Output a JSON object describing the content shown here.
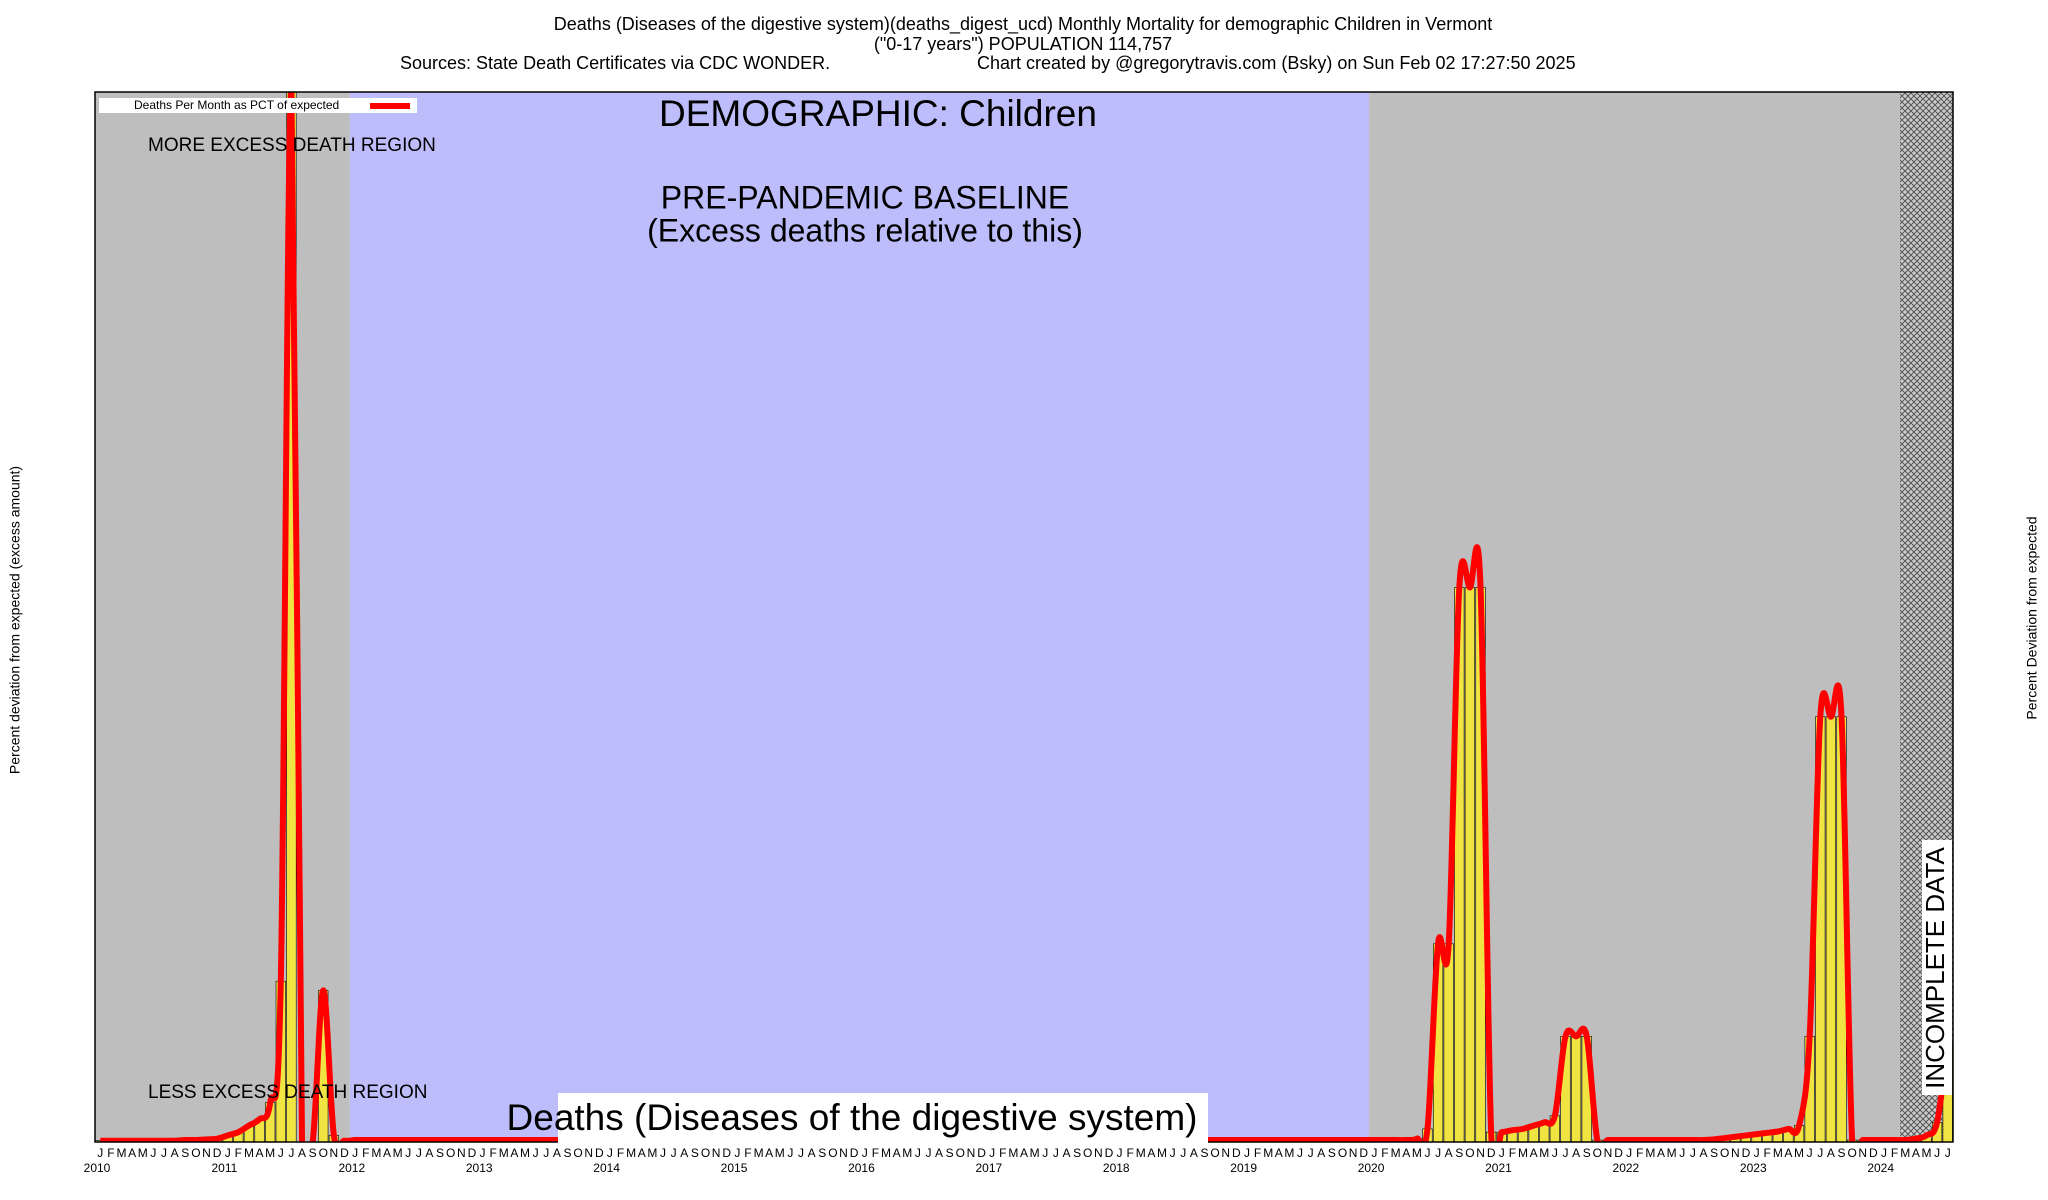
{
  "chart_data": {
    "type": "bar",
    "title": "Deaths (Diseases of the digestive system)(deaths_digest_ucd) Monthly Mortality for demographic Children in Vermont",
    "subtitle": "(\"0-17 years\") POPULATION 114,757",
    "source": "Sources: State Death Certificates via CDC WONDER.",
    "credit": "Chart created by @gregorytravis.com (Bsky) on Sun Feb 02 17:27:50 2025",
    "demographic_label": "DEMOGRAPHIC: Children",
    "baseline_label": "PRE-PANDEMIC BASELINE",
    "baseline_note": "(Excess deaths relative to this)",
    "more_label": "MORE EXCESS DEATH REGION",
    "less_label": "LESS EXCESS DEATH REGION",
    "bottom_label": "Deaths (Diseases of the digestive system)",
    "incomplete_label": "INCOMPLETE DATA",
    "ylabel": "Percent deviation from expected (excess amount)",
    "y2label": "Percent Deviation from expected",
    "categories": [
      "J",
      "F",
      "M",
      "A",
      "M",
      "J",
      "J",
      "A",
      "S",
      "O",
      "N",
      "D",
      "J",
      "F",
      "M",
      "A",
      "M",
      "J",
      "J",
      "A",
      "S",
      "O",
      "N",
      "D",
      "J",
      "F",
      "M",
      "A",
      "M",
      "J",
      "J",
      "A",
      "S",
      "O",
      "N",
      "D",
      "J",
      "F",
      "M",
      "A",
      "M",
      "J",
      "J",
      "A",
      "S",
      "O",
      "N",
      "D",
      "J",
      "F",
      "M",
      "A",
      "M",
      "J",
      "J",
      "A",
      "S",
      "O",
      "N",
      "D",
      "J",
      "F",
      "M",
      "A",
      "M",
      "J",
      "J",
      "A",
      "S",
      "O",
      "N",
      "D",
      "J",
      "F",
      "M",
      "A",
      "M",
      "J",
      "J",
      "A",
      "S",
      "O",
      "N",
      "D",
      "J",
      "F",
      "M",
      "A",
      "M",
      "J",
      "J",
      "A",
      "S",
      "O",
      "N",
      "D",
      "J",
      "F",
      "M",
      "A",
      "M",
      "J",
      "J",
      "A",
      "S",
      "O",
      "N",
      "D",
      "J",
      "F",
      "M",
      "A",
      "M",
      "J",
      "J",
      "A",
      "S",
      "O",
      "N",
      "D",
      "J",
      "F",
      "M",
      "A",
      "M",
      "J",
      "J",
      "A",
      "S",
      "O",
      "N",
      "D",
      "J",
      "F",
      "M",
      "A",
      "M",
      "J",
      "J",
      "A",
      "S",
      "O",
      "N",
      "D",
      "J",
      "F",
      "M",
      "A",
      "M",
      "J",
      "J",
      "A",
      "S",
      "O",
      "N",
      "D",
      "J",
      "F",
      "M",
      "A",
      "M",
      "J",
      "J",
      "A",
      "S",
      "O",
      "N",
      "D",
      "J",
      "F",
      "M",
      "A",
      "M",
      "J",
      "J"
    ],
    "years": [
      "2010",
      "2011",
      "2012",
      "2013",
      "2014",
      "2015",
      "2016",
      "2017",
      "2018",
      "2019",
      "2020",
      "2021",
      "2022",
      "2023",
      "2024"
    ],
    "bar_color": "#f0e442",
    "series": [
      {
        "name": "Deaths Per Month as PCT of expected",
        "color": "#ff0000",
        "values": [
          -98,
          -98,
          -98,
          -98,
          -98,
          -98,
          -98,
          -98,
          -97,
          -97,
          -96,
          -95,
          -90,
          -85,
          -75,
          -65,
          -40,
          145,
          1500,
          -100,
          -100,
          131,
          -90,
          -98,
          -97,
          -97,
          -97,
          -97,
          -97,
          -97,
          -97,
          -97,
          -97,
          -97,
          -97,
          -97,
          -97,
          -97,
          -97,
          -97,
          -97,
          -97,
          -97,
          -97,
          -97,
          -97,
          -97,
          -97,
          -97,
          -97,
          -97,
          -97,
          -97,
          -97,
          -97,
          -97,
          -97,
          -97,
          -97,
          -97,
          -97,
          -97,
          -97,
          -97,
          -97,
          -97,
          -97,
          -97,
          -97,
          -97,
          -97,
          -97,
          -97,
          -97,
          -97,
          -97,
          -97,
          -97,
          -97,
          -97,
          -97,
          -97,
          -97,
          -97,
          -97,
          -97,
          -97,
          -97,
          -97,
          -97,
          -97,
          -97,
          -97,
          -97,
          -97,
          -97,
          -97,
          -97,
          -97,
          -97,
          -97,
          -97,
          -97,
          -97,
          -97,
          -97,
          -97,
          -97,
          -97,
          -97,
          -97,
          -97,
          -97,
          -97,
          -97,
          -97,
          -97,
          -97,
          -97,
          -97,
          -97,
          -97,
          -97,
          -97,
          -95,
          -80,
          202,
          202,
          745,
          745,
          745,
          -85,
          -85,
          -82,
          -80,
          -75,
          -70,
          -60,
          61,
          61,
          61,
          -97,
          -97,
          -97,
          -97,
          -97,
          -97,
          -97,
          -97,
          -97,
          -97,
          -97,
          -96,
          -94,
          -92,
          -90,
          -88,
          -86,
          -84,
          -80,
          -75,
          61,
          548,
          548,
          548,
          -97,
          -97,
          -97,
          -97,
          -97,
          -97,
          -95,
          -90,
          -70,
          50
        ]
      }
    ],
    "ylim": [
      -100,
      1500
    ],
    "legend": "upper left"
  }
}
